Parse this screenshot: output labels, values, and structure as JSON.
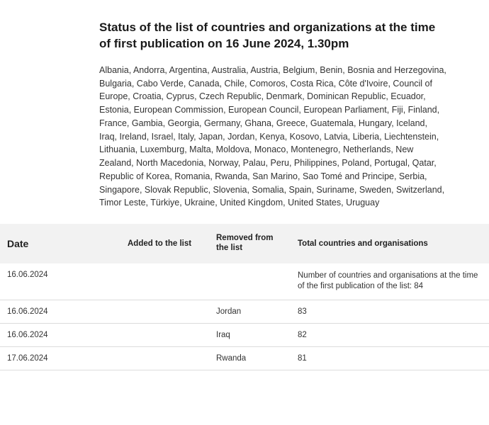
{
  "title": "Status of the list of countries and organizations at the time of first publication on 16 June 2024, 1.30pm",
  "countries_list": "Albania, Andorra, Argentina, Australia, Austria, Belgium, Benin, Bosnia and Herzegovina, Bulgaria, Cabo Verde, Canada, Chile, Comoros, Costa Rica, Côte d'Ivoire, Council of Europe, Croatia, Cyprus, Czech Republic, Denmark, Dominican Republic, Ecuador, Estonia, European Commission, European Council, European Parliament, Fiji, Finland, France, Gambia, Georgia, Germany, Ghana, Greece, Guatemala, Hungary, Iceland, Iraq, Ireland, Israel, Italy, Japan, Jordan, Kenya, Kosovo, Latvia, Liberia, Liechtenstein, Lithuania, Luxemburg, Malta, Moldova, Monaco, Montenegro, Netherlands, New Zealand, North Macedonia, Norway, Palau, Peru, Philippines, Poland, Portugal, Qatar, Republic of Korea, Romania, Rwanda, San Marino, Sao Tomé and Principe, Serbia, Singapore, Slovak Republic, Slovenia, Somalia, Spain, Suriname, Sweden, Switzerland, Timor Leste, Türkiye, Ukraine, United Kingdom, United States, Uruguay",
  "table": {
    "headers": {
      "date": "Date",
      "added": "Added to the list",
      "removed": "Removed from the list",
      "total": "Total countries and organisations"
    },
    "rows": [
      {
        "date": "16.06.2024",
        "added": "",
        "removed": "",
        "total": "Number of countries and organisa­tions at the time of the first publica­tion of the list: 84"
      },
      {
        "date": "16.06.2024",
        "added": "",
        "removed": "Jordan",
        "total": "83"
      },
      {
        "date": "16.06.2024",
        "added": "",
        "removed": "Iraq",
        "total": "82"
      },
      {
        "date": "17.06.2024",
        "added": "",
        "removed": "Rwanda",
        "total": "81"
      }
    ]
  }
}
